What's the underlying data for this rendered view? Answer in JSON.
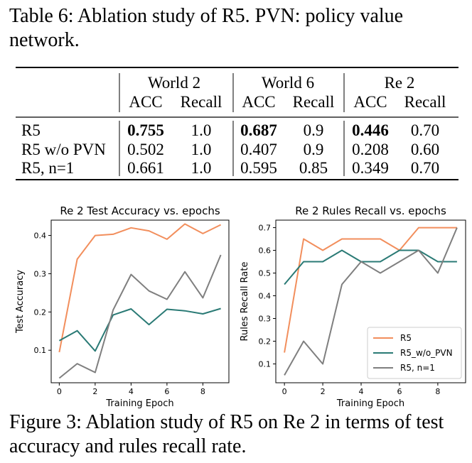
{
  "table": {
    "caption": "Table 6: Ablation study of R5. PVN: policy value network.",
    "groups": [
      "World 2",
      "World 6",
      "Re 2"
    ],
    "subheaders": [
      "ACC",
      "Recall",
      "ACC",
      "Recall",
      "ACC",
      "Recall"
    ],
    "rows": [
      {
        "label": "R5",
        "values": [
          "0.755",
          "1.0",
          "0.687",
          "0.9",
          "0.446",
          "0.70"
        ],
        "bold": [
          true,
          false,
          true,
          false,
          true,
          false
        ]
      },
      {
        "label": "R5 w/o PVN",
        "values": [
          "0.502",
          "1.0",
          "0.407",
          "0.9",
          "0.208",
          "0.60"
        ],
        "bold": [
          false,
          false,
          false,
          false,
          false,
          false
        ]
      },
      {
        "label": "R5, n=1",
        "values": [
          "0.661",
          "1.0",
          "0.595",
          "0.85",
          "0.349",
          "0.70"
        ],
        "bold": [
          false,
          false,
          false,
          false,
          false,
          false
        ]
      }
    ]
  },
  "chart_data": [
    {
      "type": "line",
      "title": "Re 2 Test Accuracy vs. epochs",
      "xlabel": "Training Epoch",
      "ylabel": "Test Accuracy",
      "xlim": [
        -0.45,
        9.45
      ],
      "ylim": [
        0.015,
        0.44
      ],
      "xticks": [
        0,
        2,
        4,
        6,
        8
      ],
      "yticks": [
        0.1,
        0.2,
        0.3,
        0.4
      ],
      "x": [
        0,
        1,
        2,
        3,
        4,
        5,
        6,
        7,
        8,
        9
      ],
      "series": [
        {
          "name": "R5",
          "color": "#f28e5c",
          "values": [
            0.095,
            0.338,
            0.4,
            0.403,
            0.42,
            0.412,
            0.39,
            0.43,
            0.405,
            0.428
          ]
        },
        {
          "name": "R5_w/o_PVN",
          "color": "#2a7a75",
          "values": [
            0.125,
            0.151,
            0.098,
            0.192,
            0.208,
            0.167,
            0.207,
            0.203,
            0.195,
            0.209
          ]
        },
        {
          "name": "R5, n=1",
          "color": "#7f7f7f",
          "values": [
            0.027,
            0.065,
            0.042,
            0.205,
            0.298,
            0.255,
            0.233,
            0.305,
            0.237,
            0.349
          ]
        }
      ],
      "legend": null
    },
    {
      "type": "line",
      "title": "Re 2 Rules Recall vs. epochs",
      "xlabel": "Training Epoch",
      "ylabel": "Rules Recall Rate",
      "xlim": [
        -0.45,
        9.45
      ],
      "ylim": [
        0.017,
        0.733
      ],
      "xticks": [
        0,
        2,
        4,
        6,
        8
      ],
      "yticks": [
        0.1,
        0.2,
        0.3,
        0.4,
        0.5,
        0.6,
        0.7
      ],
      "x": [
        0,
        1,
        2,
        3,
        4,
        5,
        6,
        7,
        8,
        9
      ],
      "series": [
        {
          "name": "R5",
          "color": "#f28e5c",
          "values": [
            0.15,
            0.65,
            0.6,
            0.65,
            0.65,
            0.65,
            0.6,
            0.7,
            0.7,
            0.7
          ]
        },
        {
          "name": "R5_w/o_PVN",
          "color": "#2a7a75",
          "values": [
            0.45,
            0.55,
            0.55,
            0.6,
            0.55,
            0.55,
            0.6,
            0.6,
            0.55,
            0.55
          ]
        },
        {
          "name": "R5, n=1",
          "color": "#7f7f7f",
          "values": [
            0.05,
            0.2,
            0.1,
            0.45,
            0.55,
            0.5,
            0.55,
            0.6,
            0.5,
            0.7
          ]
        }
      ],
      "legend": "lower-right"
    }
  ],
  "figure_caption": "Figure 3: Ablation study of R5 on Re 2 in terms of test accuracy and rules recall rate."
}
